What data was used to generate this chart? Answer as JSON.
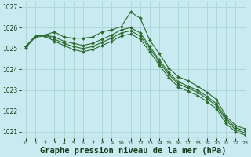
{
  "background_color": "#c8eaf0",
  "grid_color": "#aad4d4",
  "line_color": "#2d6a2d",
  "marker_color": "#2d6a2d",
  "xlabel": "Graphe pression niveau de la mer (hPa)",
  "xlabel_fontsize": 7.5,
  "xlim": [
    -0.5,
    23
  ],
  "ylim": [
    1020.7,
    1027.2
  ],
  "yticks": [
    1021,
    1022,
    1023,
    1024,
    1025,
    1026,
    1027
  ],
  "xticks": [
    0,
    1,
    2,
    3,
    4,
    5,
    6,
    7,
    8,
    9,
    10,
    11,
    12,
    13,
    14,
    15,
    16,
    17,
    18,
    19,
    20,
    21,
    22,
    23
  ],
  "series": [
    [
      1025.1,
      1025.6,
      1025.65,
      1025.8,
      1025.55,
      1025.5,
      1025.5,
      1025.55,
      1025.8,
      1025.9,
      1026.05,
      1026.75,
      1026.45,
      1025.4,
      1024.75,
      1024.05,
      1023.65,
      1023.45,
      1023.2,
      1022.9,
      1022.55,
      1021.75,
      1021.3,
      1021.15
    ],
    [
      1025.1,
      1025.6,
      1025.65,
      1025.55,
      1025.35,
      1025.25,
      1025.15,
      1025.25,
      1025.45,
      1025.65,
      1025.9,
      1026.0,
      1025.75,
      1025.1,
      1024.45,
      1023.85,
      1023.4,
      1023.2,
      1023.0,
      1022.7,
      1022.35,
      1021.65,
      1021.2,
      1021.05
    ],
    [
      1025.1,
      1025.6,
      1025.65,
      1025.45,
      1025.25,
      1025.1,
      1025.0,
      1025.1,
      1025.3,
      1025.5,
      1025.75,
      1025.85,
      1025.6,
      1025.0,
      1024.35,
      1023.75,
      1023.3,
      1023.1,
      1022.9,
      1022.6,
      1022.25,
      1021.55,
      1021.1,
      1020.95
    ],
    [
      1025.05,
      1025.55,
      1025.6,
      1025.35,
      1025.15,
      1024.95,
      1024.85,
      1024.95,
      1025.15,
      1025.35,
      1025.6,
      1025.7,
      1025.45,
      1024.85,
      1024.2,
      1023.6,
      1023.15,
      1022.95,
      1022.75,
      1022.45,
      1022.1,
      1021.4,
      1021.0,
      1020.85
    ]
  ]
}
